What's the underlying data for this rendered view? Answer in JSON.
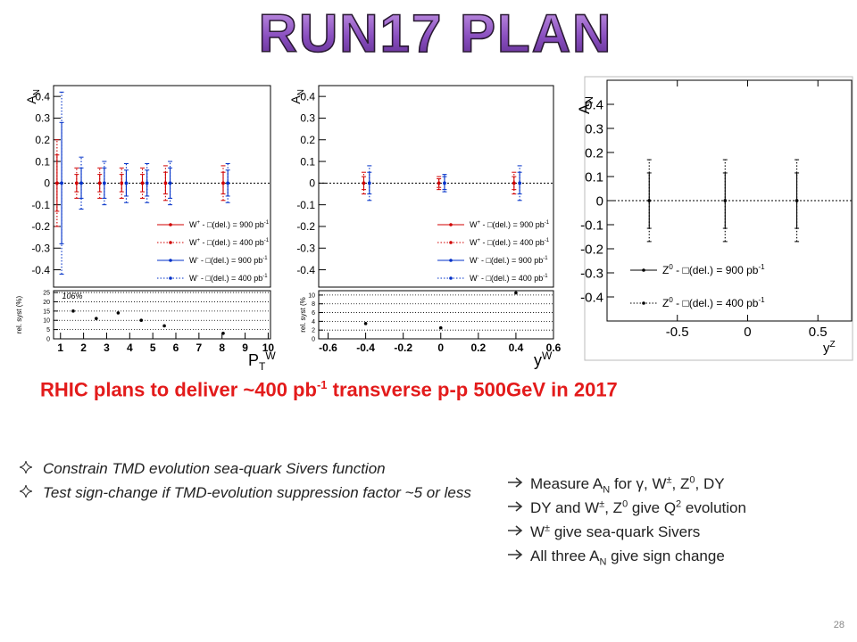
{
  "title": "RUN17 PLAN",
  "chart_data": [
    {
      "type": "errorbar",
      "y_label": [
        "A",
        {
          "sub": "N"
        }
      ],
      "x_label": [
        "P",
        {
          "sub": "T"
        },
        {
          "sup": "W"
        }
      ],
      "xlim": [
        0.7,
        10.1
      ],
      "xticks": [
        1,
        2,
        3,
        4,
        5,
        6,
        7,
        8,
        9,
        10
      ],
      "ylim": [
        -0.48,
        0.45
      ],
      "yticks": [
        -0.4,
        -0.3,
        -0.2,
        -0.1,
        0,
        0.1,
        0.2,
        0.3,
        0.4
      ],
      "zero_line": true,
      "series": [
        {
          "name": [
            "W",
            {
              "sup": "+"
            },
            " - □(del.) = 900 pb",
            {
              "sup": "-1"
            }
          ],
          "color": "#d00000",
          "style": "solid",
          "x": [
            0.85,
            1.7,
            2.7,
            3.65,
            4.55,
            5.55,
            8.05
          ],
          "values": [
            0,
            0,
            0,
            0,
            0,
            0,
            0
          ],
          "errors": [
            0.13,
            0.04,
            0.04,
            0.04,
            0.04,
            0.05,
            0.05
          ]
        },
        {
          "name": [
            "W",
            {
              "sup": "+"
            },
            " - □(del.) = 400 pb",
            {
              "sup": "-1"
            }
          ],
          "color": "#d00000",
          "style": "dotted",
          "x": [
            0.85,
            1.7,
            2.7,
            3.65,
            4.55,
            5.55,
            8.05
          ],
          "values": [
            0,
            0,
            0,
            0,
            0,
            0,
            0
          ],
          "errors": [
            0.2,
            0.07,
            0.07,
            0.07,
            0.07,
            0.08,
            0.08
          ]
        },
        {
          "name": [
            "W",
            {
              "sup": "-"
            },
            " - □(del.) = 900 pb",
            {
              "sup": "-1"
            }
          ],
          "color": "#0030c8",
          "style": "solid",
          "x": [
            1.05,
            1.9,
            2.9,
            3.85,
            4.75,
            5.75,
            8.25
          ],
          "values": [
            0,
            0,
            0,
            0,
            0,
            0,
            0
          ],
          "errors": [
            0.28,
            0.07,
            0.07,
            0.06,
            0.06,
            0.07,
            0.06
          ]
        },
        {
          "name": [
            "W",
            {
              "sup": "-"
            },
            " - □(del.) = 400 pb",
            {
              "sup": "-1"
            }
          ],
          "color": "#0030c8",
          "style": "dotted",
          "x": [
            1.05,
            1.9,
            2.9,
            3.85,
            4.75,
            5.75,
            8.25
          ],
          "values": [
            0,
            0,
            0,
            0,
            0,
            0,
            0
          ],
          "errors": [
            0.42,
            0.12,
            0.1,
            0.09,
            0.09,
            0.1,
            0.09
          ]
        }
      ],
      "syst": {
        "y_label": "rel. syst (%)",
        "ylim": [
          0,
          26
        ],
        "yticks": [
          0,
          5,
          10,
          15,
          20,
          25
        ],
        "grid": true,
        "color": "#000000",
        "x": [
          0.95,
          1.55,
          2.55,
          3.5,
          4.5,
          5.5,
          8.05
        ],
        "values": [
          106,
          15,
          11,
          14,
          10,
          7,
          3
        ],
        "value_labels": [
          "106%",
          null,
          null,
          null,
          null,
          null,
          null
        ]
      }
    },
    {
      "type": "errorbar",
      "y_label": [
        "A",
        {
          "sub": "N"
        }
      ],
      "x_label": [
        "y",
        {
          "sup": "W"
        }
      ],
      "xlim": [
        -0.65,
        0.6
      ],
      "xticks": [
        -0.6,
        -0.4,
        -0.2,
        0,
        0.2,
        0.4,
        0.6
      ],
      "ylim": [
        -0.48,
        0.45
      ],
      "yticks": [
        -0.4,
        -0.3,
        -0.2,
        -0.1,
        0,
        0.1,
        0.2,
        0.3,
        0.4
      ],
      "zero_line": true,
      "series": [
        {
          "name": [
            "W",
            {
              "sup": "+"
            },
            " - □(del.) = 900 pb",
            {
              "sup": "-1"
            }
          ],
          "color": "#d00000",
          "style": "solid",
          "x": [
            -0.41,
            -0.01,
            0.39
          ],
          "values": [
            0,
            0,
            0
          ],
          "errors": [
            0.03,
            0.02,
            0.03
          ]
        },
        {
          "name": [
            "W",
            {
              "sup": "+"
            },
            " - □(del.) = 400 pb",
            {
              "sup": "-1"
            }
          ],
          "color": "#d00000",
          "style": "dotted",
          "x": [
            -0.41,
            -0.01,
            0.39
          ],
          "values": [
            0,
            0,
            0
          ],
          "errors": [
            0.05,
            0.03,
            0.05
          ]
        },
        {
          "name": [
            "W",
            {
              "sup": "-"
            },
            " - □(del.) = 900 pb",
            {
              "sup": "-1"
            }
          ],
          "color": "#0030c8",
          "style": "solid",
          "x": [
            -0.38,
            0.02,
            0.42
          ],
          "values": [
            0,
            0,
            0
          ],
          "errors": [
            0.05,
            0.03,
            0.05
          ]
        },
        {
          "name": [
            "W",
            {
              "sup": "-"
            },
            " - □(del.) = 400 pb",
            {
              "sup": "-1"
            }
          ],
          "color": "#0030c8",
          "style": "dotted",
          "x": [
            -0.38,
            0.02,
            0.42
          ],
          "values": [
            0,
            0,
            0
          ],
          "errors": [
            0.08,
            0.04,
            0.08
          ]
        }
      ],
      "syst": {
        "y_label": "rel. syst (%",
        "ylim": [
          0,
          11
        ],
        "yticks": [
          0,
          2,
          4,
          6,
          8,
          10
        ],
        "grid": true,
        "color": "#000000",
        "x": [
          -0.4,
          0,
          0.4
        ],
        "values": [
          3.5,
          2.5,
          10.5
        ]
      }
    },
    {
      "type": "errorbar",
      "y_label": [
        "A",
        {
          "sub": "N"
        }
      ],
      "x_label": [
        "y",
        {
          "sup": "Z"
        }
      ],
      "xlim": [
        -1,
        0.74
      ],
      "xticks": [
        -0.5,
        0,
        0.5
      ],
      "ylim": [
        -0.5,
        0.5
      ],
      "yticks": [
        -0.4,
        -0.3,
        -0.2,
        -0.1,
        0,
        0.1,
        0.2,
        0.3,
        0.4
      ],
      "zero_line": true,
      "series": [
        {
          "name": [
            "Z",
            {
              "sup": "0"
            },
            " - □(del.) = 900 pb",
            {
              "sup": "-1"
            }
          ],
          "color": "#000000",
          "style": "solid",
          "x": [
            -0.7,
            -0.16,
            0.35
          ],
          "values": [
            0,
            0,
            0
          ],
          "errors": [
            0.115,
            0.115,
            0.115
          ]
        },
        {
          "name": [
            "Z",
            {
              "sup": "0"
            },
            " - □(del.) = 400 pb",
            {
              "sup": "-1"
            }
          ],
          "color": "#000000",
          "style": "dotted",
          "x": [
            -0.7,
            -0.16,
            0.35
          ],
          "values": [
            0,
            0,
            0
          ],
          "errors": [
            0.17,
            0.17,
            0.17
          ]
        }
      ]
    }
  ],
  "headline": [
    "RHIC plans to deliver ~400 pb",
    {
      "sup": "-1"
    },
    " transverse p-p 500GeV in 2017"
  ],
  "left_bullets": [
    [
      "Constrain TMD evolution sea-quark Sivers function"
    ],
    [
      "Test sign-change if TMD-evolution suppression factor ~5 or less"
    ]
  ],
  "right_bullets": [
    [
      "Measure A",
      {
        "sub": "N"
      },
      " for γ, W",
      {
        "sup": "±"
      },
      ", Z",
      {
        "sup": "0"
      },
      ", DY"
    ],
    [
      "DY and W",
      {
        "sup": "±"
      },
      ", Z",
      {
        "sup": "0"
      },
      " give Q",
      {
        "sup": "2"
      },
      " evolution"
    ],
    [
      "W",
      {
        "sup": "±"
      },
      " give sea-quark Sivers"
    ],
    [
      "All three A",
      {
        "sub": "N"
      },
      " give sign change"
    ]
  ],
  "page_number": "28"
}
